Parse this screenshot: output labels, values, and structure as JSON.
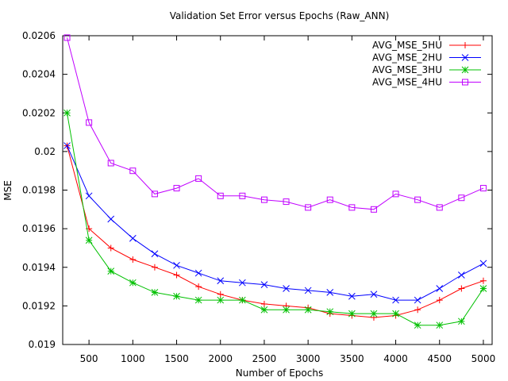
{
  "chart_data": {
    "type": "line",
    "title": "Validation Set Error versus Epochs (Raw_ANN)",
    "xlabel": "Number of Epochs",
    "ylabel": "MSE",
    "xlim": [
      200,
      5100
    ],
    "ylim": [
      0.019,
      0.0206
    ],
    "xticks": [
      500,
      1000,
      1500,
      2000,
      2500,
      3000,
      3500,
      4000,
      4500,
      5000
    ],
    "yticks": [
      0.019,
      0.0192,
      0.0194,
      0.0196,
      0.0198,
      0.02,
      0.0202,
      0.0204,
      0.0206
    ],
    "ytick_labels": [
      "0.019",
      "0.0192",
      "0.0194",
      "0.0196",
      "0.0198",
      "0.02",
      "0.0202",
      "0.0204",
      "0.0206"
    ],
    "grid": false,
    "legend_position": "top-right",
    "x": [
      250,
      500,
      750,
      1000,
      1250,
      1500,
      1750,
      2000,
      2250,
      2500,
      2750,
      3000,
      3250,
      3500,
      3750,
      4000,
      4250,
      4500,
      4750,
      5000
    ],
    "series": [
      {
        "name": "AVG_MSE_5HU",
        "color": "#ff0000",
        "marker": "plus",
        "values": [
          0.02003,
          0.0196,
          0.0195,
          0.01944,
          0.0194,
          0.01936,
          0.0193,
          0.01926,
          0.01923,
          0.01921,
          0.0192,
          0.01919,
          0.01916,
          0.01915,
          0.01914,
          0.01915,
          0.01918,
          0.01923,
          0.01929,
          0.01933
        ]
      },
      {
        "name": "AVG_MSE_2HU",
        "color": "#0000ff",
        "marker": "cross",
        "values": [
          0.02003,
          0.01977,
          0.01965,
          0.01955,
          0.01947,
          0.01941,
          0.01937,
          0.01933,
          0.01932,
          0.01931,
          0.01929,
          0.01928,
          0.01927,
          0.01925,
          0.01926,
          0.01923,
          0.01923,
          0.01929,
          0.01936,
          0.01942
        ]
      },
      {
        "name": "AVG_MSE_3HU",
        "color": "#00c000",
        "marker": "star",
        "values": [
          0.0202,
          0.01954,
          0.01938,
          0.01932,
          0.01927,
          0.01925,
          0.01923,
          0.01923,
          0.01923,
          0.01918,
          0.01918,
          0.01918,
          0.01917,
          0.01916,
          0.01916,
          0.01916,
          0.0191,
          0.0191,
          0.01912,
          0.01929
        ]
      },
      {
        "name": "AVG_MSE_4HU",
        "color": "#c000ff",
        "marker": "square",
        "values": [
          0.02059,
          0.02015,
          0.01994,
          0.0199,
          0.01978,
          0.01981,
          0.01986,
          0.01977,
          0.01977,
          0.01975,
          0.01974,
          0.01971,
          0.01975,
          0.01971,
          0.0197,
          0.01978,
          0.01975,
          0.01971,
          0.01976,
          0.01981
        ]
      }
    ]
  }
}
